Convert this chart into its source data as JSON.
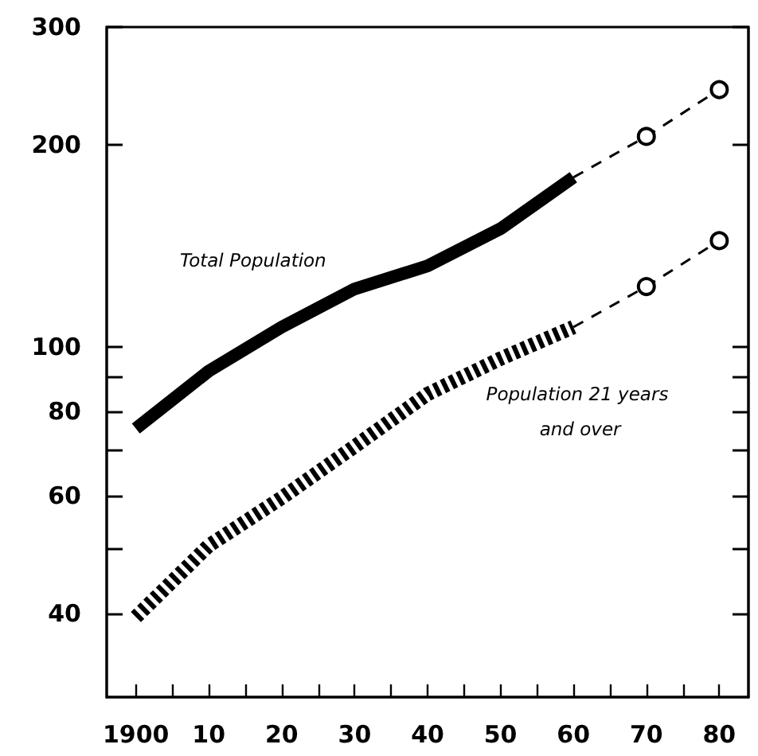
{
  "chart_data": {
    "type": "line",
    "x": [
      1900,
      1910,
      1920,
      1930,
      1940,
      1950,
      1960
    ],
    "series": [
      {
        "name": "Total Population",
        "color": "#000000",
        "values": [
          75.5,
          92,
          107,
          122,
          132,
          150,
          179
        ],
        "line_style": "solid",
        "marker": "none"
      },
      {
        "color": "#000000",
        "x": [
          1960,
          1970,
          1980
        ],
        "values": [
          179,
          206,
          242
        ],
        "line_style": "dashed",
        "marker": "circle"
      },
      {
        "name": "Population 21 years and over",
        "color": "#000000",
        "values": [
          39.5,
          50.5,
          59.5,
          71,
          85,
          96,
          107
        ],
        "line_style": "dotted",
        "marker": "none"
      },
      {
        "color": "#000000",
        "x": [
          1960,
          1970,
          1980
        ],
        "values": [
          107,
          123,
          144
        ],
        "line_style": "dashed",
        "marker": "circle"
      }
    ],
    "log": "y",
    "xlim": [
      1896,
      1984
    ],
    "xticks": [
      1900,
      {
        "value": 1905,
        "label": null
      },
      {
        "value": 1910,
        "label": "10"
      },
      {
        "value": 1915,
        "label": null
      },
      {
        "value": 1920,
        "label": "20"
      },
      {
        "value": 1925,
        "label": null
      },
      {
        "value": 1930,
        "label": "30"
      },
      {
        "value": 1935,
        "label": null
      },
      {
        "value": 1940,
        "label": "40"
      },
      {
        "value": 1945,
        "label": null
      },
      {
        "value": 1950,
        "label": "50"
      },
      {
        "value": 1955,
        "label": null
      },
      {
        "value": 1960,
        "label": "60"
      },
      {
        "value": 1965,
        "label": null
      },
      {
        "value": 1970,
        "label": "70"
      },
      {
        "value": 1975,
        "label": null
      },
      {
        "value": 1980,
        "label": "80"
      }
    ],
    "ylim": [
      30,
      300
    ],
    "yticks": [
      40,
      {
        "value": 50,
        "label": null
      },
      60,
      {
        "value": 70,
        "label": null
      },
      80,
      {
        "value": 90,
        "label": null
      },
      100,
      200,
      300
    ],
    "grid": false,
    "legend": false
  }
}
